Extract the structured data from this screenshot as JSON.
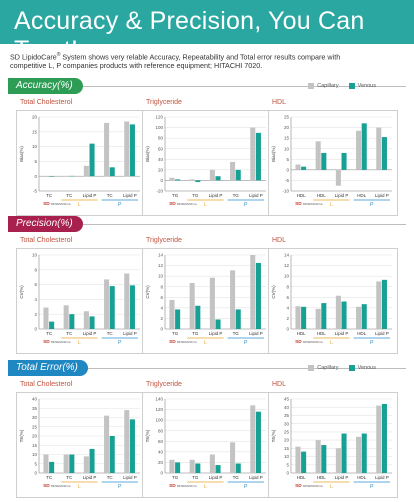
{
  "page": {
    "title": "Accuracy & Precision, You Can Trust!",
    "intro_line1_a": "SD LipidoCare",
    "intro_reg": "®",
    "intro_line1_b": " System shows very relable Accuracy, Repeatability and Total  error results compare with",
    "intro_line2": "competitive L, P companies products with reference equipment; HITACHI 7020."
  },
  "legend": {
    "capillary": "Capillary",
    "venous": "Venous"
  },
  "colors": {
    "banner": "#2aa7a0",
    "capillary": "#c3c3c3",
    "venous": "#17a195",
    "accuracy_tab": "#2d9d55",
    "precision_tab": "#a8204e",
    "total_error_tab": "#1f87c2",
    "panel_title": "#c0533d",
    "sd_brand": "#c33a2b",
    "group_l": "#e8a52a",
    "group_p": "#2a8bcf"
  },
  "sections": [
    {
      "key": "accuracy",
      "label": "Accuracy(%)"
    },
    {
      "key": "precision",
      "label": "Precision(%)"
    },
    {
      "key": "total_error",
      "label": "Total Error(%)"
    }
  ],
  "group_labels": {
    "sd": "SD",
    "sd_sub": "BIOSENSOR,Inc.",
    "l": "L",
    "p": "P"
  },
  "chart_data": [
    {
      "type": "bar",
      "section": "Accuracy(%)",
      "title": "Total Cholesterol",
      "ylabel": "Bias(%)",
      "ylim": [
        -5,
        20
      ],
      "yticks": [
        -5,
        0,
        5,
        10,
        15,
        20
      ],
      "categories": [
        "TC",
        "TC",
        "Lipid P",
        "TC",
        "Lipid P"
      ],
      "groups": [
        "SD",
        "L",
        "P"
      ],
      "series": [
        {
          "name": "Capillary",
          "values": [
            -0.2,
            -0.1,
            3.5,
            18.0,
            18.5
          ]
        },
        {
          "name": "Venous",
          "values": [
            -0.1,
            0.1,
            11.0,
            3.0,
            17.5
          ]
        }
      ]
    },
    {
      "type": "bar",
      "section": "Accuracy(%)",
      "title": "Triglyceride",
      "ylabel": "Bias(%)",
      "ylim": [
        -20,
        120
      ],
      "yticks": [
        -20,
        0,
        20,
        40,
        60,
        80,
        100,
        120
      ],
      "categories": [
        "TG",
        "TG",
        "Lipid P",
        "TG",
        "Lipid P"
      ],
      "groups": [
        "SD",
        "L",
        "P"
      ],
      "series": [
        {
          "name": "Capillary",
          "values": [
            5,
            2,
            20,
            35,
            100
          ]
        },
        {
          "name": "Venous",
          "values": [
            2,
            -3,
            8,
            20,
            90
          ]
        }
      ]
    },
    {
      "type": "bar",
      "section": "Accuracy(%)",
      "title": "HDL",
      "ylabel": "Bias(%)",
      "ylim": [
        -10,
        25
      ],
      "yticks": [
        -10,
        -5,
        0,
        5,
        10,
        15,
        20,
        25
      ],
      "categories": [
        "HDL",
        "HDL",
        "Lipid P",
        "HDL",
        "Lipid P"
      ],
      "groups": [
        "SD",
        "L",
        "P"
      ],
      "series": [
        {
          "name": "Capillary",
          "values": [
            2.5,
            13.5,
            -7.5,
            18.5,
            20.0
          ]
        },
        {
          "name": "Venous",
          "values": [
            1.5,
            8.0,
            8.0,
            22.0,
            15.5
          ]
        }
      ]
    },
    {
      "type": "bar",
      "section": "Precision(%)",
      "title": "Total Cholesterol",
      "ylabel": "CV(%)",
      "ylim": [
        0,
        10
      ],
      "yticks": [
        0,
        2,
        4,
        6,
        8,
        10
      ],
      "categories": [
        "TC",
        "TC",
        "Lipid P",
        "TC",
        "Lipid P"
      ],
      "groups": [
        "SD",
        "L",
        "P"
      ],
      "series": [
        {
          "name": "Capillary",
          "values": [
            2.9,
            3.2,
            2.4,
            6.7,
            7.5
          ]
        },
        {
          "name": "Venous",
          "values": [
            1.0,
            2.0,
            1.7,
            5.8,
            5.9
          ]
        }
      ]
    },
    {
      "type": "bar",
      "section": "Precision(%)",
      "title": "Triglyceride",
      "ylabel": "CV(%)",
      "ylim": [
        0,
        14
      ],
      "yticks": [
        0,
        2,
        4,
        6,
        8,
        10,
        12,
        14
      ],
      "categories": [
        "TG",
        "TG",
        "Lipid P",
        "TG",
        "Lipid P"
      ],
      "groups": [
        "SD",
        "L",
        "P"
      ],
      "series": [
        {
          "name": "Capillary",
          "values": [
            5.5,
            8.7,
            9.7,
            11.1,
            14.0
          ]
        },
        {
          "name": "Venous",
          "values": [
            3.7,
            4.4,
            1.8,
            3.7,
            12.5
          ]
        }
      ]
    },
    {
      "type": "bar",
      "section": "Precision(%)",
      "title": "HDL",
      "ylabel": "CV(%)",
      "ylim": [
        0,
        14
      ],
      "yticks": [
        0,
        2,
        4,
        6,
        8,
        10,
        12,
        14
      ],
      "categories": [
        "HDL",
        "HDL",
        "Lipid P",
        "HDL",
        "Lipid P"
      ],
      "groups": [
        "SD",
        "L",
        "P"
      ],
      "series": [
        {
          "name": "Capillary",
          "values": [
            4.3,
            3.8,
            6.3,
            4.2,
            9.0
          ]
        },
        {
          "name": "Venous",
          "values": [
            4.2,
            4.9,
            5.2,
            4.7,
            9.3
          ]
        }
      ]
    },
    {
      "type": "bar",
      "section": "Total Error(%)",
      "title": "Total Cholesterol",
      "ylabel": "TE(%)",
      "ylim": [
        0,
        40
      ],
      "yticks": [
        0,
        5,
        10,
        15,
        20,
        25,
        30,
        35,
        40
      ],
      "categories": [
        "TC",
        "TC",
        "Lipid P",
        "TC",
        "Lipid P"
      ],
      "groups": [
        "SD",
        "L",
        "P"
      ],
      "series": [
        {
          "name": "Capillary",
          "values": [
            10,
            10,
            9,
            31,
            34
          ]
        },
        {
          "name": "Venous",
          "values": [
            6,
            10,
            13,
            20,
            29
          ]
        }
      ]
    },
    {
      "type": "bar",
      "section": "Total Error(%)",
      "title": "Triglyceride",
      "ylabel": "TE(%)",
      "ylim": [
        0,
        140
      ],
      "yticks": [
        0,
        20,
        40,
        60,
        80,
        100,
        120,
        140
      ],
      "categories": [
        "TG",
        "TG",
        "Lipid P",
        "TG",
        "Lipid P"
      ],
      "groups": [
        "SD",
        "L",
        "P"
      ],
      "series": [
        {
          "name": "Capillary",
          "values": [
            25,
            25,
            35,
            58,
            128
          ]
        },
        {
          "name": "Venous",
          "values": [
            20,
            18,
            15,
            18,
            116
          ]
        }
      ]
    },
    {
      "type": "bar",
      "section": "Total Error(%)",
      "title": "HDL",
      "ylabel": "TE(%)",
      "ylim": [
        0,
        45
      ],
      "yticks": [
        0,
        5,
        10,
        15,
        20,
        25,
        30,
        35,
        40,
        45
      ],
      "categories": [
        "HDL",
        "HDL",
        "Lipid P",
        "HDL",
        "Lipid P"
      ],
      "groups": [
        "SD",
        "L",
        "P"
      ],
      "series": [
        {
          "name": "Capillary",
          "values": [
            16,
            20,
            15,
            22,
            41
          ]
        },
        {
          "name": "Venous",
          "values": [
            13,
            17,
            24,
            24,
            42
          ]
        }
      ]
    }
  ]
}
